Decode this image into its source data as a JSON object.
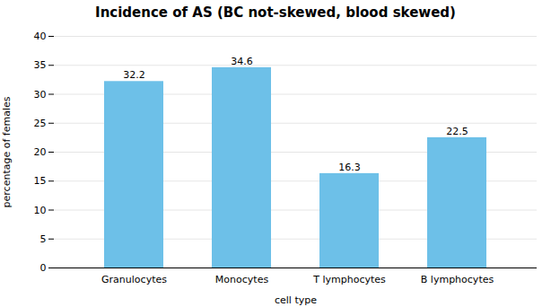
{
  "chart_data": {
    "type": "bar",
    "title": "Incidence of AS (BC not-skewed, blood skewed)",
    "categories": [
      "Granulocytes",
      "Monocytes",
      "T lymphocytes",
      "B lymphocytes"
    ],
    "values": [
      32.2,
      34.6,
      16.3,
      22.5
    ],
    "color": "#6DC0E8",
    "xlabel": "cell type",
    "ylabel": "percentage of females",
    "ylim": [
      0,
      40
    ],
    "yticks": [
      0,
      5,
      10,
      15,
      20,
      25,
      30,
      35,
      40
    ],
    "grid": true,
    "data_labels": true
  }
}
